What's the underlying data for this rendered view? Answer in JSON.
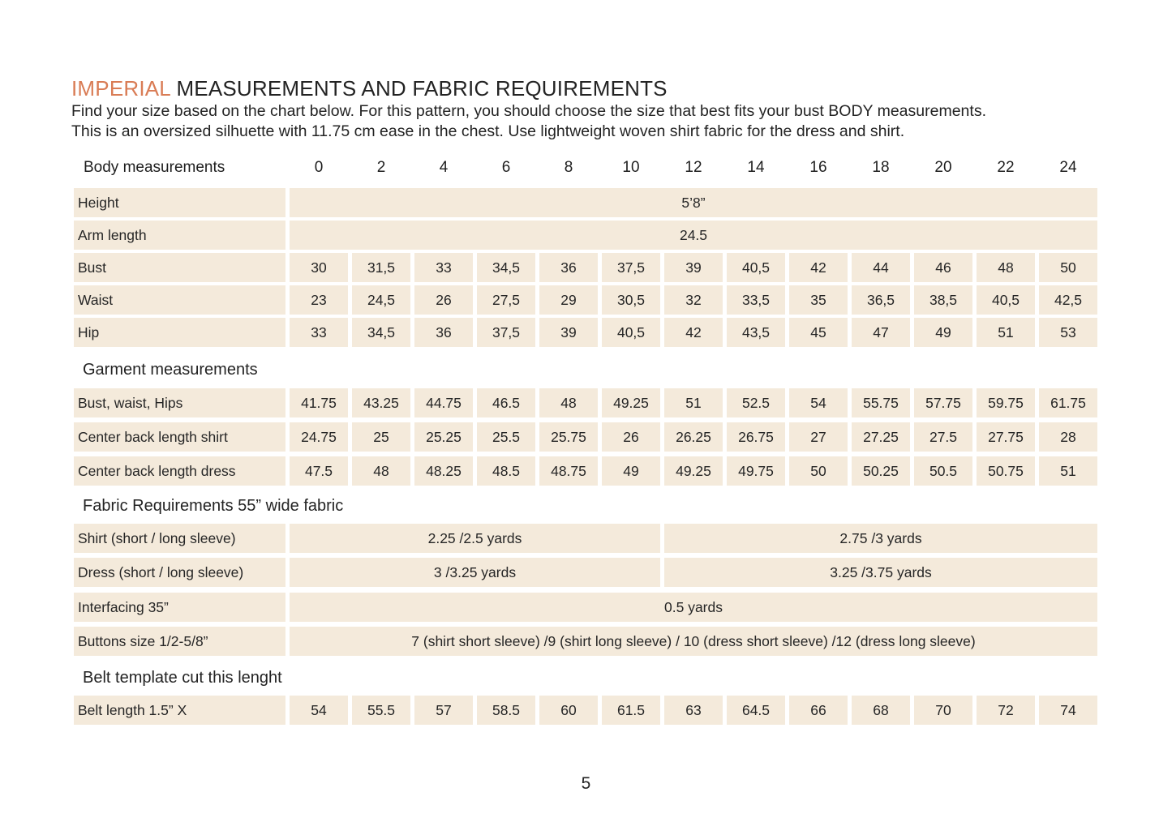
{
  "heading": {
    "accent": "IMPERIAL",
    "rest": " MEASUREMENTS AND FABRIC REQUIREMENTS"
  },
  "intro": [
    "Find your size based on the chart below. For this pattern, you should choose the size that best fits your bust BODY measurements.",
    "This is an oversized silhuette with 11.75 cm ease in the chest. Use lightweight woven shirt fabric for the dress and shirt."
  ],
  "sizes_label": "Body measurements",
  "sizes": [
    "0",
    "2",
    "4",
    "6",
    "8",
    "10",
    "12",
    "14",
    "16",
    "18",
    "20",
    "22",
    "24"
  ],
  "body": {
    "height": {
      "label": "Height",
      "value": "5’8”"
    },
    "arm": {
      "label": "Arm length",
      "value": "24.5"
    },
    "rows": [
      {
        "label": "Bust",
        "values": [
          "30",
          "31,5",
          "33",
          "34,5",
          "36",
          "37,5",
          "39",
          "40,5",
          "42",
          "44",
          "46",
          "48",
          "50"
        ]
      },
      {
        "label": "Waist",
        "values": [
          "23",
          "24,5",
          "26",
          "27,5",
          "29",
          "30,5",
          "32",
          "33,5",
          "35",
          "36,5",
          "38,5",
          "40,5",
          "42,5"
        ]
      },
      {
        "label": "Hip",
        "values": [
          "33",
          "34,5",
          "36",
          "37,5",
          "39",
          "40,5",
          "42",
          "43,5",
          "45",
          "47",
          "49",
          "51",
          "53"
        ]
      }
    ]
  },
  "garment": {
    "title": "Garment measurements",
    "rows": [
      {
        "label": "Bust, waist, Hips",
        "values": [
          "41.75",
          "43.25",
          "44.75",
          "46.5",
          "48",
          "49.25",
          "51",
          "52.5",
          "54",
          "55.75",
          "57.75",
          "59.75",
          "61.75"
        ]
      },
      {
        "label": "Center back length shirt",
        "values": [
          "24.75",
          "25",
          "25.25",
          "25.5",
          "25.75",
          "26",
          "26.25",
          "26.75",
          "27",
          "27.25",
          "27.5",
          "27.75",
          "28"
        ]
      },
      {
        "label": "Center back length dress",
        "values": [
          "47.5",
          "48",
          "48.25",
          "48.5",
          "48.75",
          "49",
          "49.25",
          "49.75",
          "50",
          "50.25",
          "50.5",
          "50.75",
          "51"
        ]
      }
    ]
  },
  "fabric": {
    "title": "Fabric Requirements 55” wide fabric",
    "shirt": {
      "label": "Shirt (short / long sleeve)",
      "small": "2.25 /2.5 yards",
      "large": "2.75 /3 yards"
    },
    "dress": {
      "label": "Dress (short / long sleeve)",
      "small": "3 /3.25 yards",
      "large": "3.25 /3.75 yards"
    },
    "interfacing": {
      "label": "Interfacing 35”",
      "value": "0.5 yards"
    },
    "buttons": {
      "label": "Buttons size 1/2-5/8”",
      "value": "7 (shirt short sleeve) /9 (shirt long sleeve) / 10 (dress short sleeve) /12 (dress long sleeve)"
    }
  },
  "belt": {
    "title": "Belt template cut this lenght",
    "label": "Belt length 1.5” X",
    "values": [
      "54",
      "55.5",
      "57",
      "58.5",
      "60",
      "61.5",
      "63",
      "64.5",
      "66",
      "68",
      "70",
      "72",
      "74"
    ]
  },
  "page_number": "5"
}
